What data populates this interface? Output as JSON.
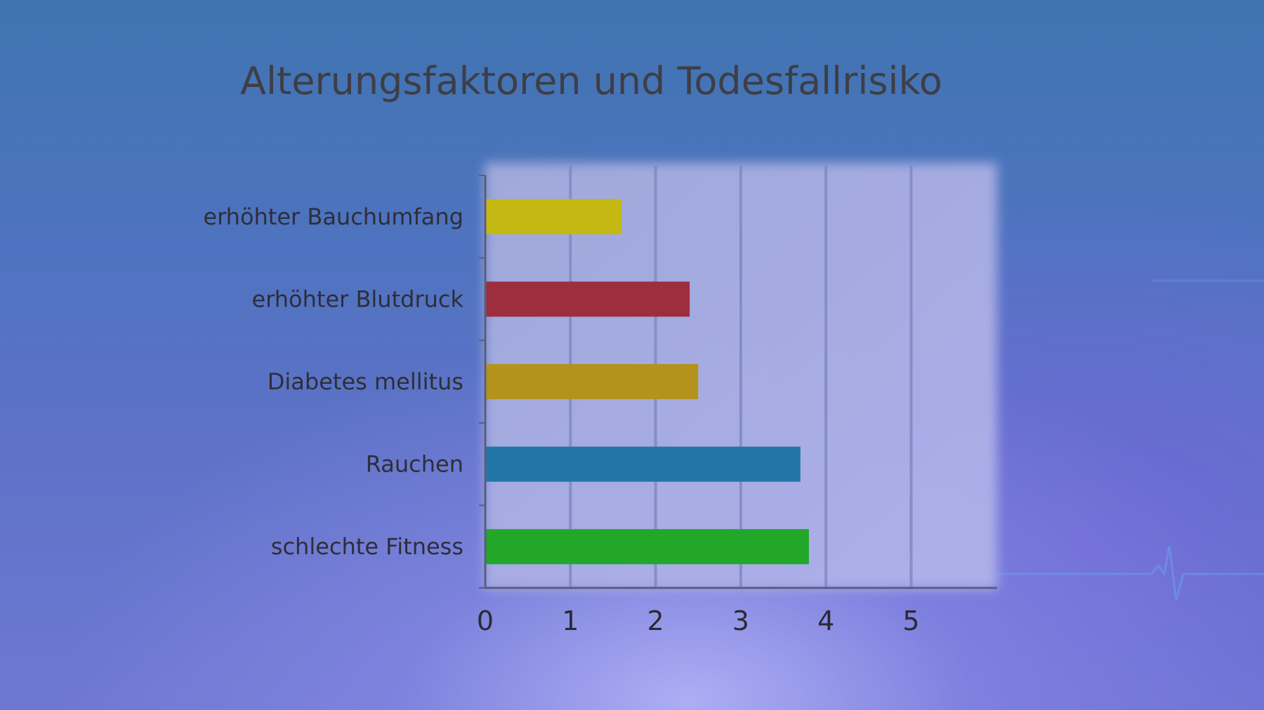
{
  "chart_data": {
    "type": "bar",
    "orientation": "horizontal",
    "title": "Alterungsfaktoren und Todesfallrisiko",
    "xlabel": "",
    "ylabel": "",
    "categories": [
      "erhöhter Bauchumfang",
      "erhöhter Blutdruck",
      "Diabetes mellitus",
      "Rauchen",
      "schlechte Fitness"
    ],
    "values": [
      1.6,
      2.4,
      2.5,
      3.7,
      3.8
    ],
    "colors": [
      "#c4b812",
      "#9e2d3e",
      "#b3931b",
      "#2276a7",
      "#22a72b"
    ],
    "xlim": [
      0,
      6
    ],
    "xticks": [
      0,
      1,
      2,
      3,
      4,
      5
    ],
    "grid": "vertical",
    "legend": "none"
  },
  "colors": {
    "plot_background": "#a8aee0",
    "gridline": "#7e86c6",
    "axis": "#5a5e7c"
  }
}
